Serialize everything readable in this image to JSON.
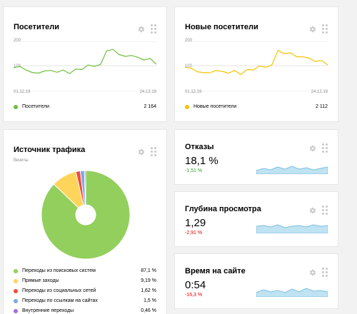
{
  "cards": {
    "visitors": {
      "title": "Посетители",
      "y_ticks": [
        "200",
        "100"
      ],
      "x_ticks": [
        "01.12.19",
        "24.12.19"
      ],
      "legend_label": "Посетители",
      "total": "2 164",
      "color": "#6ebf3a"
    },
    "new_visitors": {
      "title": "Новые посетители",
      "y_ticks": [
        "200",
        "100"
      ],
      "x_ticks": [
        "01.12.19",
        "24.12.19"
      ],
      "legend_label": "Новые посетители",
      "total": "2 112",
      "color": "#f5c400"
    },
    "traffic_source": {
      "title": "Источник трафика",
      "subtitle": "Визиты",
      "legend": [
        {
          "label": "Переходы из поисковых систем",
          "value": "87,1 %",
          "color": "#92cf5c"
        },
        {
          "label": "Прямые заходы",
          "value": "9,19 %",
          "color": "#ffd45a"
        },
        {
          "label": "Переходы из социальных сетей",
          "value": "1,62 %",
          "color": "#ef4d3d"
        },
        {
          "label": "Переходы по ссылкам на сайтах",
          "value": "1,5 %",
          "color": "#7aa7e8"
        },
        {
          "label": "Внутренние переходы",
          "value": "0,46 %",
          "color": "#a06ee0"
        }
      ]
    },
    "bounce": {
      "title": "Отказы",
      "value": "18,1 %",
      "delta": "-1,51 %",
      "delta_color": "green"
    },
    "depth": {
      "title": "Глубина просмотра",
      "value": "1,29",
      "delta": "-2,91 %",
      "delta_color": "red"
    },
    "time": {
      "title": "Время на сайте",
      "value": "0:54",
      "delta": "-16,3 %",
      "delta_color": "red"
    }
  },
  "chart_data": [
    {
      "type": "line",
      "x": [
        "01.12.19",
        "02.12.19",
        "03.12.19",
        "04.12.19",
        "05.12.19",
        "06.12.19",
        "07.12.19",
        "08.12.19",
        "09.12.19",
        "10.12.19",
        "11.12.19",
        "12.12.19",
        "13.12.19",
        "14.12.19",
        "15.12.19",
        "16.12.19",
        "17.12.19",
        "18.12.19",
        "19.12.19",
        "20.12.19",
        "21.12.19",
        "22.12.19",
        "23.12.19",
        "24.12.19"
      ],
      "series": [
        {
          "name": "Посетители",
          "values": [
            104,
            110,
            94,
            83,
            80,
            90,
            92,
            84,
            94,
            78,
            98,
            96,
            116,
            110,
            118,
            178,
            185,
            162,
            154,
            158,
            150,
            138,
            145,
            119
          ]
        }
      ],
      "ylim": [
        0,
        220
      ],
      "color": "#6ebf3a"
    },
    {
      "type": "line",
      "x": [
        "01.12.19",
        "02.12.19",
        "03.12.19",
        "04.12.19",
        "05.12.19",
        "06.12.19",
        "07.12.19",
        "08.12.19",
        "09.12.19",
        "10.12.19",
        "11.12.19",
        "12.12.19",
        "13.12.19",
        "14.12.19",
        "15.12.19",
        "16.12.19",
        "17.12.19",
        "18.12.19",
        "19.12.19",
        "20.12.19",
        "21.12.19",
        "22.12.19",
        "23.12.19",
        "24.12.19"
      ],
      "series": [
        {
          "name": "Новые посетители",
          "values": [
            106,
            102,
            86,
            82,
            82,
            92,
            88,
            80,
            92,
            74,
            96,
            94,
            112,
            106,
            116,
            180,
            166,
            170,
            152,
            152,
            146,
            132,
            136,
            116
          ]
        }
      ],
      "ylim": [
        0,
        220
      ],
      "color": "#f5c400"
    },
    {
      "type": "pie",
      "categories": [
        "Переходы из поисковых систем",
        "Прямые заходы",
        "Переходы из социальных сетей",
        "Переходы по ссылкам на сайтах",
        "Внутренние переходы"
      ],
      "values": [
        87.1,
        9.19,
        1.62,
        1.5,
        0.46
      ]
    }
  ]
}
